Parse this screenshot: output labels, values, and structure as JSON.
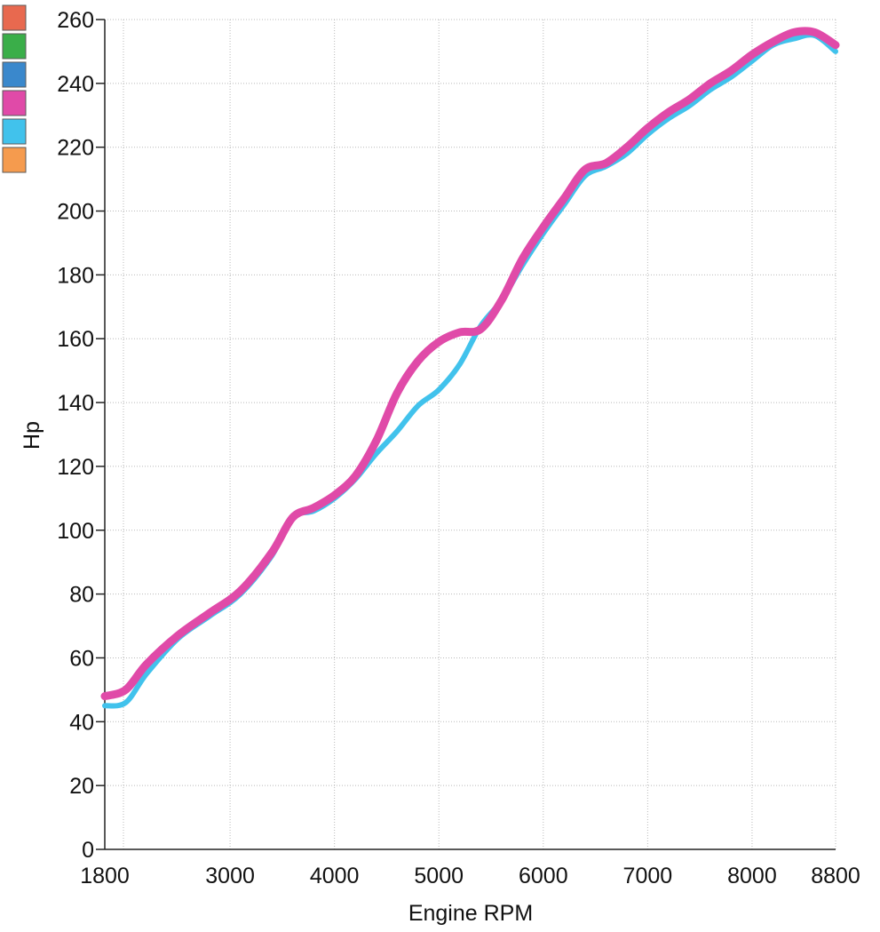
{
  "chart_data": {
    "type": "line",
    "xlabel": "Engine RPM",
    "ylabel": "Hp",
    "xlim": [
      1800,
      8800
    ],
    "ylim": [
      0,
      260
    ],
    "x_ticks": [
      1800,
      3000,
      4000,
      5000,
      6000,
      7000,
      8000,
      8800
    ],
    "y_ticks": [
      0,
      20,
      40,
      60,
      80,
      100,
      120,
      140,
      160,
      180,
      200,
      220,
      240,
      260
    ],
    "grid": true,
    "legend": {
      "placement": "top-left",
      "swatches": [
        "#e8694f",
        "#3aae49",
        "#3a88cc",
        "#e04aa8",
        "#41c2ec",
        "#f59b4e"
      ]
    },
    "series": [
      {
        "color": "#41c2ec",
        "x": [
          1800,
          2000,
          2200,
          2500,
          2800,
          3100,
          3400,
          3600,
          3800,
          4000,
          4200,
          4400,
          4600,
          4800,
          5000,
          5200,
          5400,
          5600,
          5800,
          6000,
          6200,
          6400,
          6600,
          6800,
          7000,
          7200,
          7400,
          7600,
          7800,
          8000,
          8200,
          8400,
          8600,
          8800
        ],
        "y": [
          45,
          46,
          55,
          66,
          73,
          80,
          92,
          104,
          106,
          110,
          116,
          124,
          131,
          139,
          144,
          152,
          164,
          172,
          183,
          193,
          202,
          211,
          214,
          218,
          224,
          229,
          233,
          238,
          242,
          247,
          252,
          254,
          255,
          250
        ]
      },
      {
        "color": "#e04aa8",
        "x": [
          1800,
          2000,
          2200,
          2500,
          2800,
          3100,
          3400,
          3600,
          3800,
          4000,
          4200,
          4400,
          4600,
          4800,
          5000,
          5200,
          5400,
          5600,
          5800,
          6000,
          6200,
          6400,
          6600,
          6800,
          7000,
          7200,
          7400,
          7600,
          7800,
          8000,
          8200,
          8400,
          8600,
          8800
        ],
        "y": [
          48,
          50,
          58,
          67,
          74,
          81,
          93,
          104,
          107,
          111,
          117,
          128,
          143,
          153,
          159,
          162,
          163,
          172,
          185,
          195,
          204,
          213,
          215,
          220,
          226,
          231,
          235,
          240,
          244,
          249,
          253,
          256,
          256,
          252
        ]
      }
    ]
  }
}
